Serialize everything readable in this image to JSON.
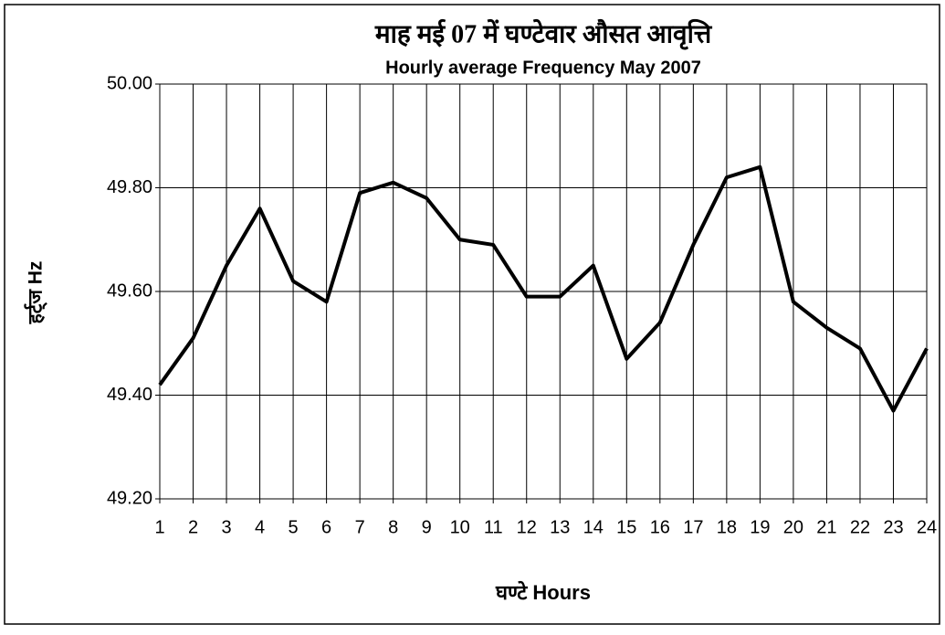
{
  "chart_data": {
    "type": "line",
    "title": "माह मई 07 में घण्टेवार औसत आवृत्ति",
    "subtitle": "Hourly average Frequency May 2007",
    "y_label": "हर्ट्ज Hz",
    "x_label": "घण्टे Hours",
    "categories": [
      "1",
      "2",
      "3",
      "4",
      "5",
      "6",
      "7",
      "8",
      "9",
      "10",
      "11",
      "12",
      "13",
      "14",
      "15",
      "16",
      "17",
      "18",
      "19",
      "20",
      "21",
      "22",
      "23",
      "24"
    ],
    "values": [
      49.42,
      49.51,
      49.65,
      49.76,
      49.62,
      49.58,
      49.79,
      49.81,
      49.78,
      49.7,
      49.69,
      49.59,
      49.59,
      49.65,
      49.47,
      49.54,
      49.69,
      49.82,
      49.84,
      49.58,
      49.53,
      49.49,
      49.37,
      49.49
    ],
    "color": "#000000",
    "ylim": [
      49.2,
      50.0
    ],
    "yticks": [
      {
        "value": 49.2,
        "label": "49.20"
      },
      {
        "value": 49.4,
        "label": "49.40"
      },
      {
        "value": 49.6,
        "label": "49.60"
      },
      {
        "value": 49.8,
        "label": "49.80"
      },
      {
        "value": 50.0,
        "label": "50.00"
      }
    ],
    "grid": true
  }
}
